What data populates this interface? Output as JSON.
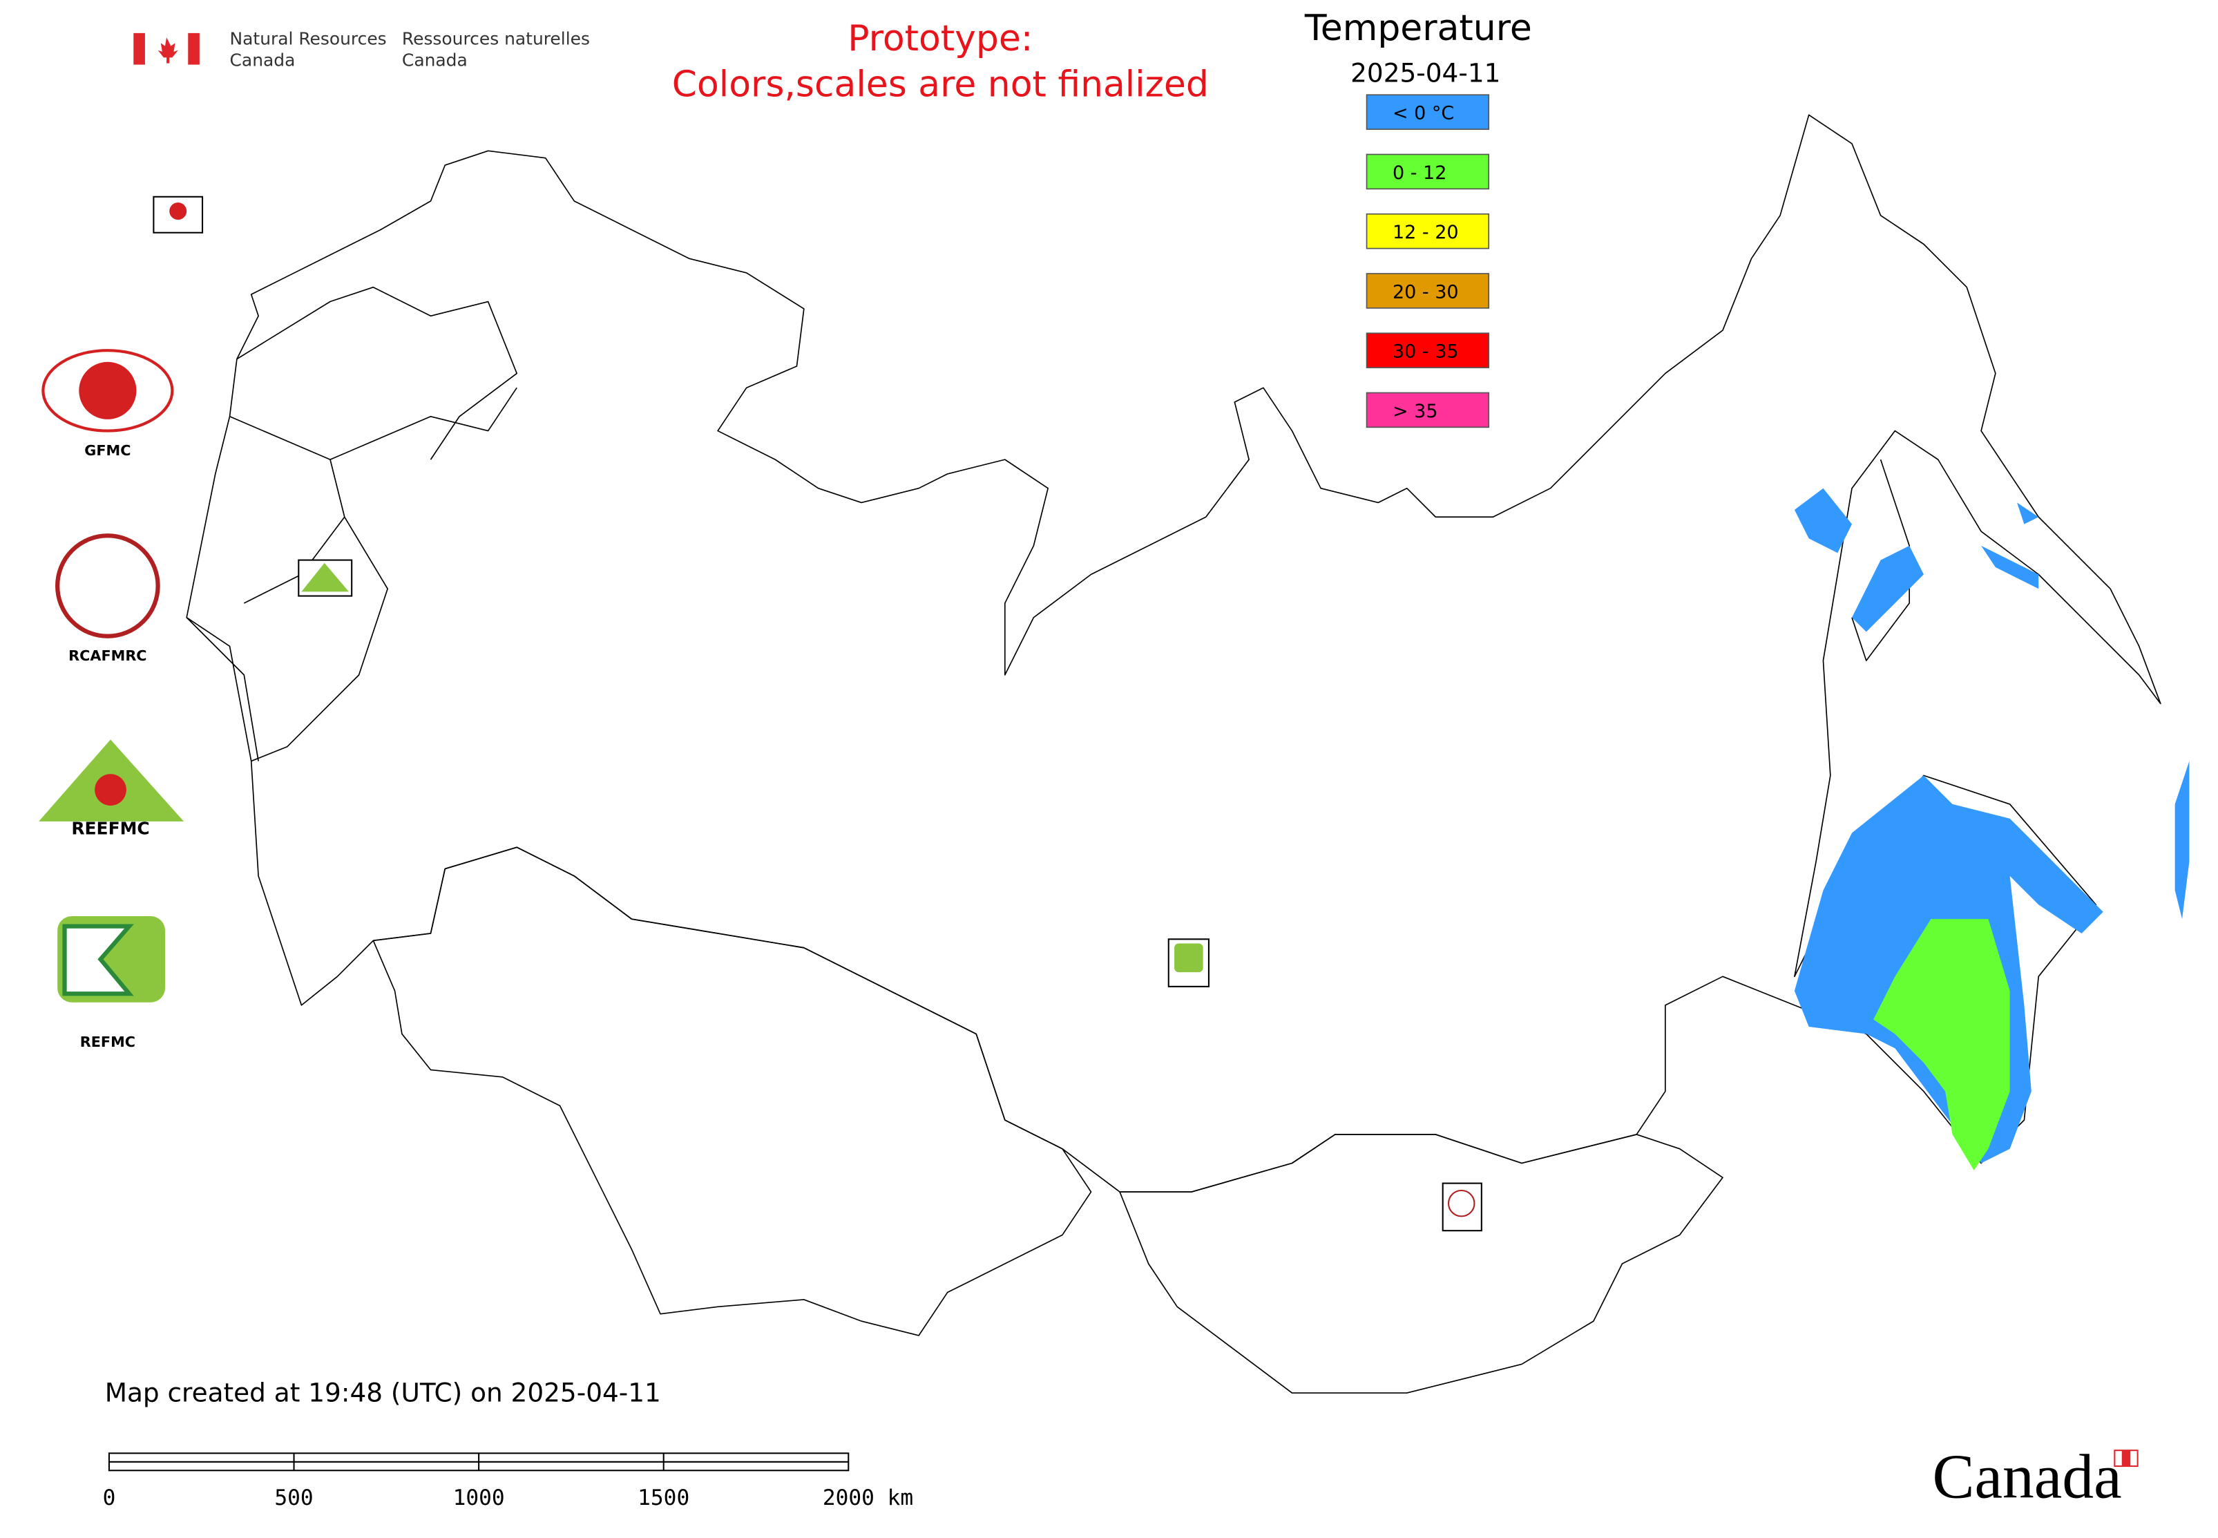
{
  "header": {
    "department_en": [
      "Natural Resources",
      "Canada"
    ],
    "department_fr": [
      "Ressources naturelles",
      "Canada"
    ],
    "notice": [
      "Prototype:",
      "Colors,scales are not finalized"
    ]
  },
  "legend": {
    "title": "Temperature",
    "date": "2025-04-11",
    "items": [
      {
        "label": "< 0 °C",
        "color": "#3399ff"
      },
      {
        "label": "0 - 12",
        "color": "#66ff33"
      },
      {
        "label": "12 - 20",
        "color": "#ffff00"
      },
      {
        "label": "20 - 30",
        "color": "#e09a00"
      },
      {
        "label": "30 - 35",
        "color": "#ff0000"
      },
      {
        "label": "> 35",
        "color": "#ff3399"
      }
    ]
  },
  "logos": [
    "GFMC",
    "RCAFMRC",
    "REEFMC",
    "REFMC"
  ],
  "footer": {
    "created": "Map created at 19:48 (UTC) on 2025-04-11",
    "scale_labels": [
      "0",
      "500",
      "1000",
      "1500",
      "2000 km"
    ],
    "wordmark": "Canada"
  }
}
